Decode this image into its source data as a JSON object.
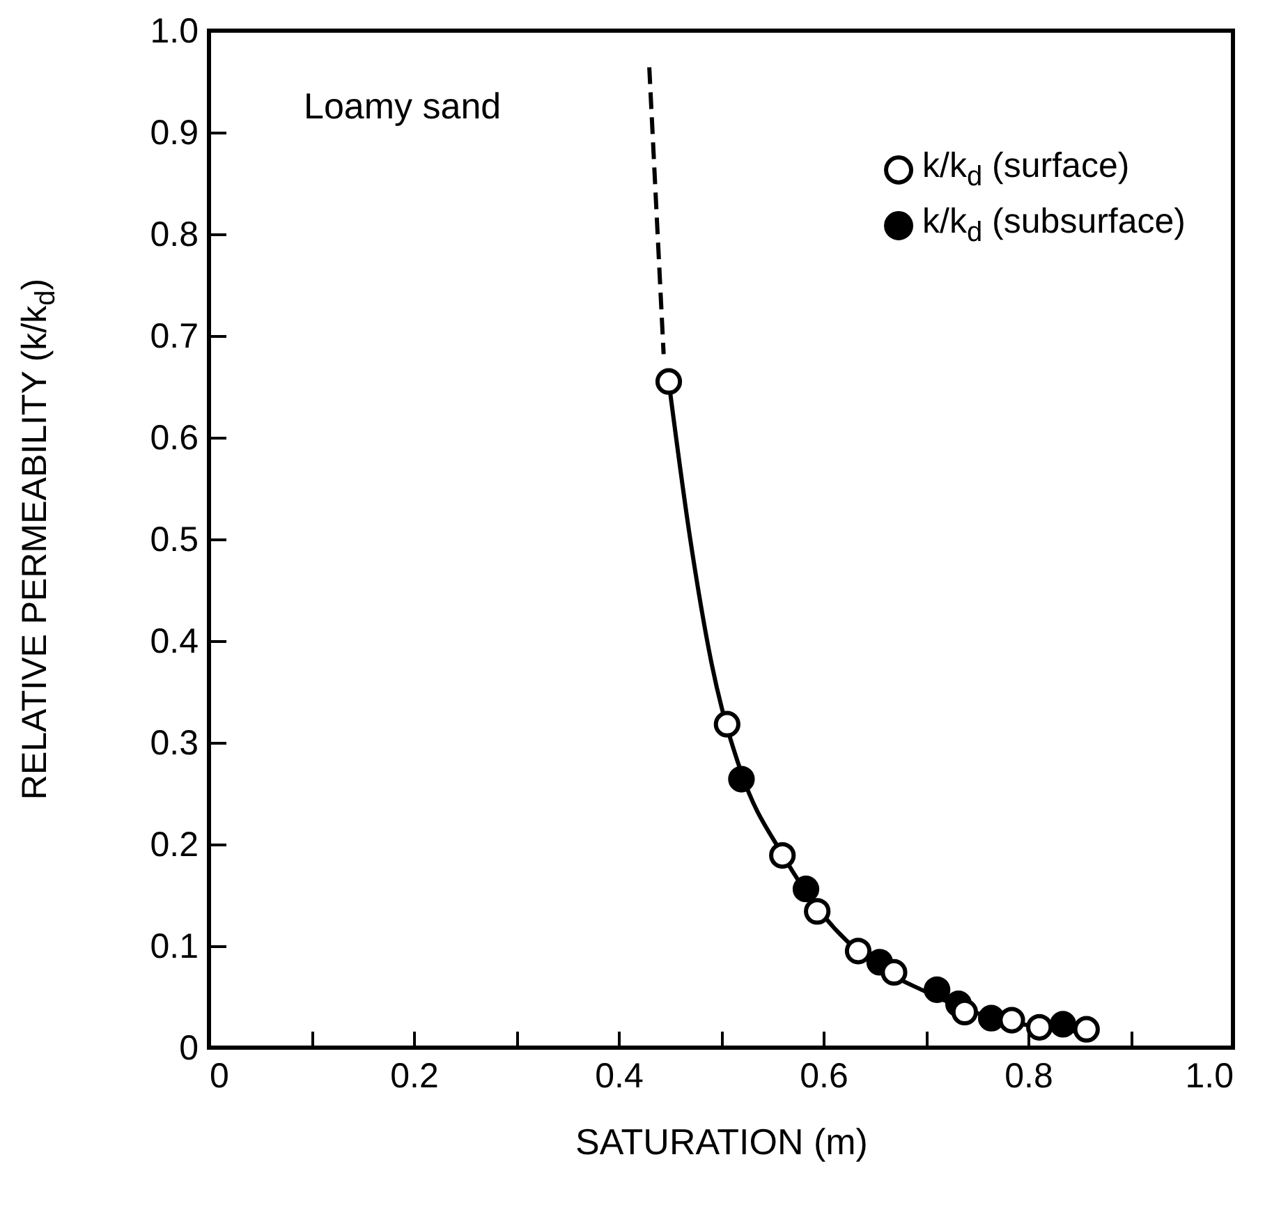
{
  "chart_data": {
    "type": "scatter",
    "xlabel": "SATURATION (m)",
    "ylabel": "RELATIVE PERMEABILITY (k/k$_{d}$)",
    "annotations": [
      "Loamy sand"
    ],
    "xlim": [
      0,
      1
    ],
    "ylim": [
      0,
      1
    ],
    "xticks": [
      0,
      {
        "value": 0.1,
        "label": null
      },
      0.2,
      {
        "value": 0.3,
        "label": null
      },
      0.4,
      {
        "value": 0.5,
        "label": null
      },
      0.6,
      {
        "value": 0.7,
        "label": null
      },
      0.8,
      {
        "value": 0.9,
        "label": null
      },
      {
        "value": 1,
        "label": "1.0"
      }
    ],
    "yticks": [
      0,
      0.1,
      0.2,
      0.3,
      0.4,
      0.5,
      0.6,
      0.7,
      0.8,
      0.9,
      {
        "value": 1,
        "label": "1.0"
      }
    ],
    "grid": false,
    "legend": "top right",
    "series": [
      {
        "type": "line",
        "color": "#000000",
        "line_style": "dashed",
        "marker": "none",
        "x": [
          0.43,
          0.444
        ],
        "values": [
          0.964,
          0.682
        ]
      },
      {
        "type": "line",
        "color": "#000000",
        "line_style": "solid",
        "marker": "none",
        "x": [
          0.449,
          0.47,
          0.491,
          0.52,
          0.56,
          0.6,
          0.65,
          0.7,
          0.75,
          0.8,
          0.86
        ],
        "values": [
          0.655,
          0.5,
          0.377,
          0.27,
          0.19,
          0.13,
          0.082,
          0.055,
          0.034,
          0.022,
          0.015
        ]
      },
      {
        "name": "k/k$_{d}$ (surface)",
        "color": "#ffffff",
        "marker": "circle",
        "x": [
          0.449,
          0.506,
          0.56,
          0.594,
          0.634,
          0.669,
          0.738,
          0.784,
          0.811,
          0.857
        ],
        "values": [
          0.655,
          0.318,
          0.189,
          0.134,
          0.095,
          0.074,
          0.035,
          0.027,
          0.02,
          0.018
        ]
      },
      {
        "name": "k/k$_{d}$ (subsurface)",
        "color": "#000000",
        "marker": "circle",
        "x": [
          0.52,
          0.583,
          0.655,
          0.711,
          0.732,
          0.764,
          0.834
        ],
        "values": [
          0.264,
          0.156,
          0.084,
          0.057,
          0.043,
          0.029,
          0.023
        ]
      }
    ]
  }
}
